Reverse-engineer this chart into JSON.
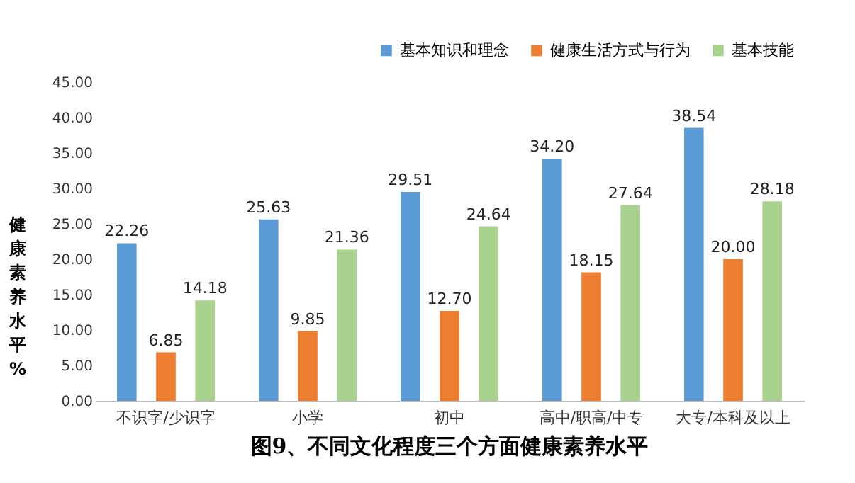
{
  "chart_data": {
    "type": "bar",
    "title": "图9、不同文化程度三个方面健康素养水平",
    "ylabel": "健康素养水平%",
    "categories": [
      "不识字/少识字",
      "小学",
      "初中",
      "高中/职高/中专",
      "大专/本科及以上"
    ],
    "series": [
      {
        "name": "基本知识和理念",
        "color": "#5b9bd5",
        "values": [
          22.26,
          25.63,
          29.51,
          34.2,
          38.54
        ],
        "value_labels": [
          "22.26",
          "25.63",
          "29.51",
          "34.20",
          "38.54"
        ]
      },
      {
        "name": "健康生活方式与行为",
        "color": "#ed7d31",
        "values": [
          6.85,
          9.85,
          12.7,
          18.15,
          20.0
        ],
        "value_labels": [
          "6.85",
          "9.85",
          "12.70",
          "18.15",
          "20.00"
        ]
      },
      {
        "name": "基本技能",
        "color": "#a9d18e",
        "values": [
          14.18,
          21.36,
          24.64,
          27.64,
          28.18
        ],
        "value_labels": [
          "14.18",
          "21.36",
          "24.64",
          "27.64",
          "28.18"
        ]
      }
    ],
    "ylim": [
      0,
      45
    ],
    "yticks": [
      {
        "value": 0,
        "label": "0.00"
      },
      {
        "value": 5,
        "label": "5.00"
      },
      {
        "value": 10,
        "label": "10.00"
      },
      {
        "value": 15,
        "label": "15.00"
      },
      {
        "value": 20,
        "label": "20.00"
      },
      {
        "value": 25,
        "label": "25.00"
      },
      {
        "value": 30,
        "label": "30.00"
      },
      {
        "value": 35,
        "label": "35.00"
      },
      {
        "value": 40,
        "label": "40.00"
      },
      {
        "value": 45,
        "label": "45.00"
      }
    ],
    "grid": false,
    "legend": "top right"
  }
}
